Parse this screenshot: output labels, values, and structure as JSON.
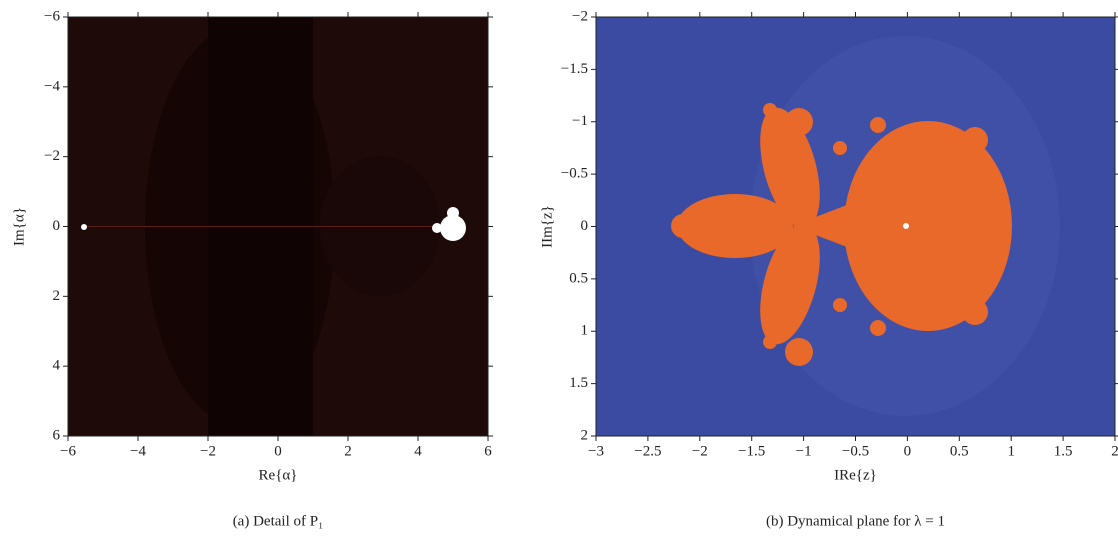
{
  "chart_data": [
    {
      "type": "image",
      "caption": "(a)  Detail of P₁",
      "xlabel": "Re{α}",
      "ylabel": "Im{α}",
      "xlim": [
        -6,
        6
      ],
      "xticks": [
        {
          "value": -6,
          "label": "−6"
        },
        {
          "value": -4,
          "label": "−4"
        },
        {
          "value": -2,
          "label": "−2"
        },
        0,
        2,
        4,
        6
      ],
      "ylim": [
        -6,
        6
      ],
      "y_inverted": true,
      "yticks": [
        {
          "value": -6,
          "label": "−6"
        },
        {
          "value": -4,
          "label": "−4"
        },
        {
          "value": -2,
          "label": "−2"
        },
        0,
        2,
        4,
        6
      ]
    },
    {
      "type": "image",
      "caption": "(b)  Dynamical plane for λ = 1",
      "xlabel": "IRe{z}",
      "ylabel": "IIm{z}",
      "xlim": [
        -3,
        2
      ],
      "xticks": [
        {
          "value": -3,
          "label": "−3"
        },
        {
          "value": -2.5,
          "label": "−2.5"
        },
        {
          "value": -2,
          "label": "−2"
        },
        {
          "value": -1.5,
          "label": "−1.5"
        },
        {
          "value": -1,
          "label": "−1"
        },
        {
          "value": -0.5,
          "label": "−0.5"
        },
        0,
        0.5,
        1,
        1.5,
        2
      ],
      "ylim": [
        -2,
        2
      ],
      "y_inverted": true,
      "yticks": [
        {
          "value": -2,
          "label": "−2"
        },
        {
          "value": -1.5,
          "label": "−1.5"
        },
        {
          "value": -1,
          "label": "−1"
        },
        {
          "value": -0.5,
          "label": "−0.5"
        },
        0,
        0.5,
        1,
        1.5,
        2
      ]
    }
  ]
}
